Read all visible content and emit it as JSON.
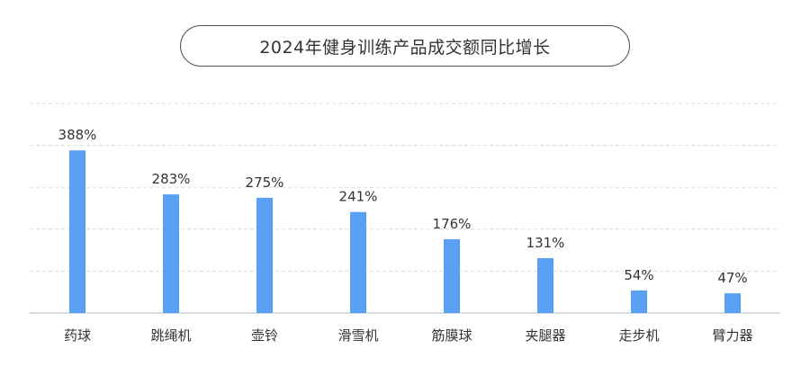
{
  "chart_data": {
    "type": "bar",
    "title": "2024年健身训练产品成交额同比增长",
    "categories": [
      "药球",
      "跳绳机",
      "壶铃",
      "滑雪机",
      "筋膜球",
      "夹腿器",
      "走步机",
      "臂力器"
    ],
    "values": [
      388,
      283,
      275,
      241,
      176,
      131,
      54,
      47
    ],
    "value_labels": [
      "388%",
      "283%",
      "275%",
      "241%",
      "176%",
      "131%",
      "54%",
      "47%"
    ],
    "unit": "%",
    "ylim": [
      0,
      500
    ],
    "grid": true,
    "legend": "none",
    "bar_color": "#5aa0f5",
    "grid_color": "#dcdcdc",
    "axis_color": "#bbbbbb"
  }
}
